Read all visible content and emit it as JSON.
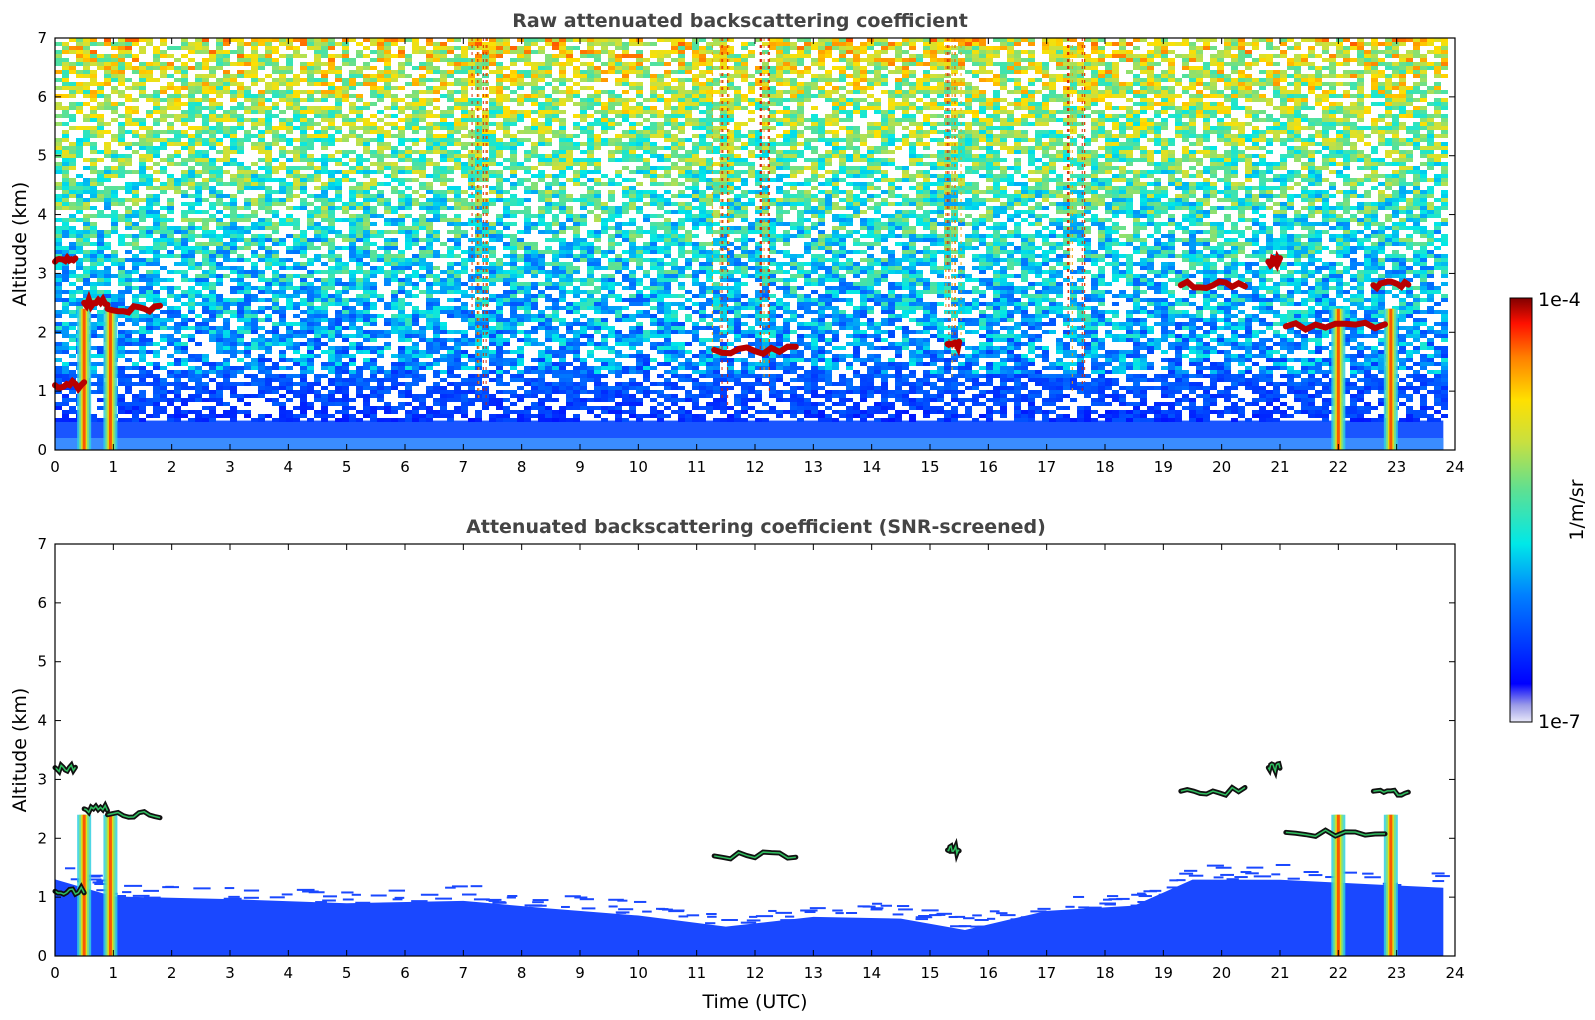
{
  "chart_data": [
    {
      "type": "heatmap",
      "title": "Raw attenuated backscattering coefficient",
      "xlabel": "",
      "ylabel": "Altitude (km)",
      "xlim": [
        0,
        24
      ],
      "ylim": [
        0,
        7
      ],
      "xticks": [
        "0",
        "1",
        "2",
        "3",
        "4",
        "5",
        "6",
        "7",
        "8",
        "9",
        "10",
        "11",
        "12",
        "13",
        "14",
        "15",
        "16",
        "17",
        "18",
        "19",
        "20",
        "21",
        "22",
        "23",
        "24"
      ],
      "yticks": [
        "0",
        "1",
        "2",
        "3",
        "4",
        "5",
        "6",
        "7"
      ],
      "data_end_time": 23.8,
      "features": {
        "boundary_layer_top_km": 0.5,
        "rain_shafts_utc": [
          0.5,
          0.95,
          22.0,
          22.9
        ],
        "noise_streaks_utc": [
          7.3,
          11.4,
          12.1,
          15.4,
          17.5
        ],
        "cloud_layers": [
          {
            "start": 0.0,
            "end": 0.35,
            "alt": 3.2
          },
          {
            "start": 0.0,
            "end": 0.5,
            "alt": 1.1
          },
          {
            "start": 0.5,
            "end": 0.9,
            "alt": 2.5
          },
          {
            "start": 0.9,
            "end": 1.8,
            "alt": 2.4
          },
          {
            "start": 11.3,
            "end": 12.7,
            "alt": 1.7
          },
          {
            "start": 15.3,
            "end": 15.5,
            "alt": 1.8
          },
          {
            "start": 19.3,
            "end": 20.4,
            "alt": 2.8
          },
          {
            "start": 20.8,
            "end": 21.0,
            "alt": 3.2
          },
          {
            "start": 21.1,
            "end": 22.8,
            "alt": 2.1
          },
          {
            "start": 22.6,
            "end": 23.2,
            "alt": 2.8
          }
        ]
      }
    },
    {
      "type": "heatmap",
      "title": "Attenuated backscattering coefficient (SNR-screened)",
      "xlabel": "Time (UTC)",
      "ylabel": "Altitude (km)",
      "xlim": [
        0,
        24
      ],
      "ylim": [
        0,
        7
      ],
      "xticks": [
        "0",
        "1",
        "2",
        "3",
        "4",
        "5",
        "6",
        "7",
        "8",
        "9",
        "10",
        "11",
        "12",
        "13",
        "14",
        "15",
        "16",
        "17",
        "18",
        "19",
        "20",
        "21",
        "22",
        "23",
        "24"
      ],
      "yticks": [
        "0",
        "1",
        "2",
        "3",
        "4",
        "5",
        "6",
        "7"
      ],
      "data_end_time": 23.8,
      "features": {
        "screened_top_km": [
          {
            "t": 0.0,
            "h": 1.3
          },
          {
            "t": 1.0,
            "h": 1.0
          },
          {
            "t": 3.0,
            "h": 0.95
          },
          {
            "t": 5.0,
            "h": 0.9
          },
          {
            "t": 7.0,
            "h": 0.95
          },
          {
            "t": 8.5,
            "h": 0.8
          },
          {
            "t": 10.0,
            "h": 0.7
          },
          {
            "t": 11.5,
            "h": 0.5
          },
          {
            "t": 13.0,
            "h": 0.65
          },
          {
            "t": 14.5,
            "h": 0.65
          },
          {
            "t": 15.6,
            "h": 0.45
          },
          {
            "t": 17.0,
            "h": 0.75
          },
          {
            "t": 18.5,
            "h": 0.85
          },
          {
            "t": 19.5,
            "h": 1.3
          },
          {
            "t": 21.0,
            "h": 1.3
          },
          {
            "t": 23.8,
            "h": 1.15
          }
        ]
      }
    }
  ],
  "colorbar": {
    "label": "1/m/sr",
    "max_label": "1e-4",
    "min_label": "1e-7",
    "colormap": "jet",
    "scale": "log",
    "range": [
      1e-07,
      0.0001
    ]
  }
}
